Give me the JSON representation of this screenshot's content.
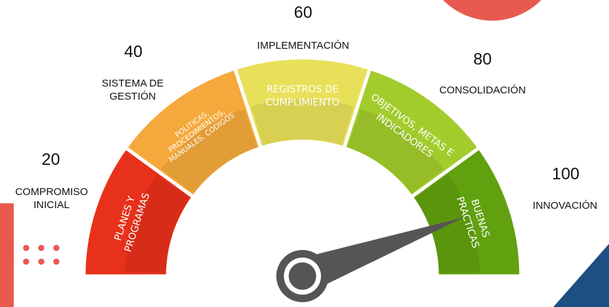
{
  "gauge": {
    "levels": [
      {
        "number": "20",
        "label": "COMPROMISO\nINICIAL",
        "segment_text": [
          "PLANES Y",
          "PROGRAMAS"
        ],
        "color": "#e8311a"
      },
      {
        "number": "40",
        "label": "SISTEMA DE\nGESTIÓN",
        "segment_text": [
          "POLITICAS,",
          "PROCEDIMIENTOS,",
          "MANUALES, CODIGOS"
        ],
        "color": "#f5a93c"
      },
      {
        "number": "60",
        "label": "IMPLEMENTACIÓN",
        "segment_text": [
          "REGISTROS DE",
          "CUMPLIMIENTO"
        ],
        "color": "#e9e05a"
      },
      {
        "number": "80",
        "label": "CONSOLIDACIÓN",
        "segment_text": [
          "OBJETIVOS, METAS E",
          "INDICADORES"
        ],
        "color": "#a2cc2c"
      },
      {
        "number": "100",
        "label": "INNOVACIÓN",
        "segment_text": [
          "BUENAS",
          "PRACTICAS"
        ],
        "color": "#61a10f"
      }
    ],
    "needle_color": "#555555"
  },
  "colors": {
    "coral": "#e85a50",
    "navy": "#1e4f82"
  }
}
